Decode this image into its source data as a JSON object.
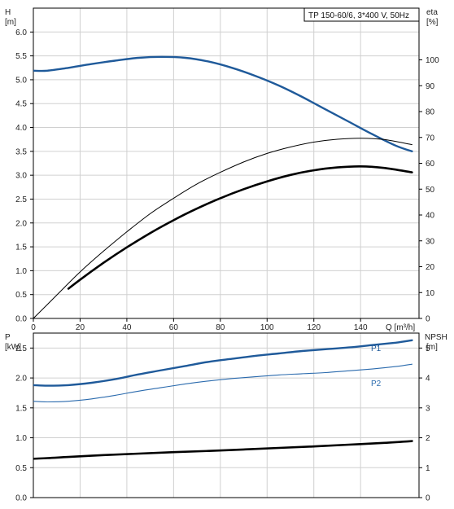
{
  "legend_box": "TP 150-60/6, 3*400 V, 50Hz",
  "colors": {
    "head": "#1f5a9a",
    "efficiency": "#000000",
    "p1": "#1f5a9a",
    "p2": "#2a6aad",
    "npsh": "#000000",
    "grid": "#d0d0d0",
    "axis": "#000000"
  },
  "chart_data": [
    {
      "type": "line",
      "title": "",
      "xlabel": "Q [m³/h]",
      "xlim": [
        0,
        165
      ],
      "x_ticks": [
        "0",
        "20",
        "40",
        "60",
        "80",
        "100",
        "120",
        "140"
      ],
      "left_axis": {
        "label_line1": "H",
        "label_line2": "[m]",
        "ylim": [
          0,
          6.5
        ],
        "ticks": [
          "0.0",
          "0.5",
          "1.0",
          "1.5",
          "2.0",
          "2.5",
          "3.0",
          "3.5",
          "4.0",
          "4.5",
          "5.0",
          "5.5",
          "6.0"
        ]
      },
      "right_axis": {
        "label_line1": "eta",
        "label_line2": "[%]",
        "ylim": [
          0,
          120
        ],
        "ticks": [
          "0",
          "10",
          "20",
          "30",
          "40",
          "50",
          "60",
          "70",
          "80",
          "90",
          "100"
        ]
      },
      "grid": true,
      "series": [
        {
          "axis": "left",
          "style": "thick-blue",
          "x": [
            0,
            6,
            15,
            25,
            35,
            45,
            55,
            65,
            75,
            85,
            95,
            105,
            115,
            125,
            135,
            145,
            155,
            162
          ],
          "y": [
            5.19,
            5.19,
            5.25,
            5.33,
            5.4,
            5.46,
            5.48,
            5.46,
            5.38,
            5.25,
            5.08,
            4.88,
            4.64,
            4.38,
            4.12,
            3.86,
            3.62,
            3.5
          ]
        },
        {
          "axis": "right",
          "style": "thin-black",
          "x": [
            0,
            10,
            20,
            30,
            40,
            50,
            60,
            70,
            80,
            90,
            100,
            110,
            120,
            130,
            140,
            150,
            162
          ],
          "y": [
            0,
            9,
            18,
            26,
            33.5,
            40.5,
            46.5,
            52,
            56.5,
            60.5,
            63.8,
            66.3,
            68.2,
            69.3,
            69.7,
            69.2,
            67.2
          ]
        },
        {
          "axis": "right",
          "style": "thick-black",
          "x": [
            15,
            20,
            30,
            40,
            50,
            60,
            70,
            80,
            90,
            100,
            110,
            120,
            130,
            140,
            150,
            162
          ],
          "y": [
            11.5,
            15,
            21.5,
            27.5,
            33,
            38,
            42.5,
            46.5,
            50,
            53,
            55.5,
            57.3,
            58.4,
            58.8,
            58.2,
            56.5
          ]
        }
      ]
    },
    {
      "type": "line",
      "title": "",
      "xlabel": "",
      "xlim": [
        0,
        165
      ],
      "left_axis": {
        "label_line1": "P",
        "label_line2": "[kW]",
        "ylim": [
          0,
          2.75
        ],
        "ticks": [
          "0.0",
          "0.5",
          "1.0",
          "1.5",
          "2.0",
          "2.5"
        ]
      },
      "right_axis": {
        "label_line1": "NPSH",
        "label_line2": "[m]",
        "ylim": [
          0,
          5.5
        ],
        "ticks": [
          "0",
          "1",
          "2",
          "3",
          "4",
          "5"
        ]
      },
      "grid": true,
      "series": [
        {
          "name": "P1",
          "axis": "left",
          "style": "thick-blue",
          "x": [
            0,
            6,
            15,
            25,
            35,
            45,
            55,
            65,
            75,
            85,
            95,
            105,
            115,
            125,
            135,
            145,
            155,
            162
          ],
          "y": [
            1.88,
            1.87,
            1.88,
            1.92,
            1.98,
            2.06,
            2.13,
            2.2,
            2.27,
            2.32,
            2.37,
            2.41,
            2.45,
            2.48,
            2.51,
            2.55,
            2.59,
            2.63
          ]
        },
        {
          "name": "P2",
          "axis": "left",
          "style": "thin-blue",
          "x": [
            0,
            6,
            15,
            25,
            35,
            45,
            55,
            65,
            75,
            85,
            95,
            105,
            115,
            125,
            135,
            145,
            155,
            162
          ],
          "y": [
            1.61,
            1.6,
            1.61,
            1.65,
            1.71,
            1.78,
            1.84,
            1.9,
            1.95,
            1.99,
            2.02,
            2.05,
            2.07,
            2.09,
            2.12,
            2.15,
            2.19,
            2.23
          ]
        },
        {
          "axis": "right",
          "style": "thick-black",
          "x": [
            0,
            6,
            15,
            30,
            45,
            60,
            75,
            90,
            105,
            120,
            135,
            150,
            162
          ],
          "y": [
            1.3,
            1.32,
            1.36,
            1.42,
            1.47,
            1.52,
            1.56,
            1.61,
            1.66,
            1.71,
            1.77,
            1.83,
            1.89
          ]
        }
      ]
    }
  ]
}
